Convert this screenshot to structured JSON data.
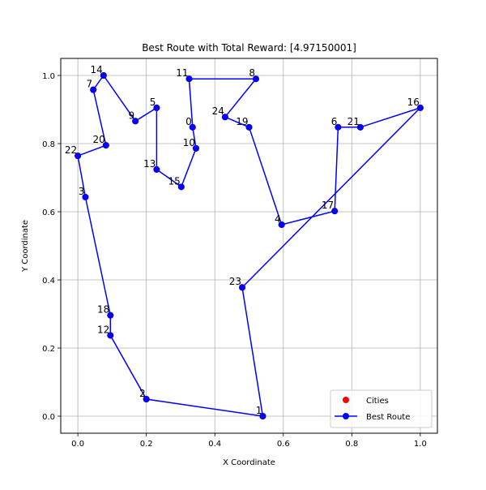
{
  "chart_data": {
    "type": "line",
    "title": "Best Route with Total Reward: [4.97150001]",
    "xlabel": "X Coordinate",
    "ylabel": "Y Coordinate",
    "xlim": [
      -0.05,
      1.05
    ],
    "ylim": [
      -0.05,
      1.05
    ],
    "grid": true,
    "x_ticks": [
      "0.0",
      "0.2",
      "0.4",
      "0.6",
      "0.8",
      "1.0"
    ],
    "y_ticks": [
      "0.0",
      "0.2",
      "0.4",
      "0.6",
      "0.8",
      "1.0"
    ],
    "x_tick_values": [
      0.0,
      0.2,
      0.4,
      0.6,
      0.8,
      1.0
    ],
    "y_tick_values": [
      0.0,
      0.2,
      0.4,
      0.6,
      0.8,
      1.0
    ],
    "legend": {
      "placement": "lower-right",
      "entries": [
        "Cities",
        "Best Route"
      ]
    },
    "colors": {
      "cities": "#ff0000",
      "route": "#0000ff"
    },
    "cities": [
      {
        "label": "0",
        "x": 0.335,
        "y": 0.848
      },
      {
        "label": "1",
        "x": 0.54,
        "y": 0.0
      },
      {
        "label": "2",
        "x": 0.2,
        "y": 0.05
      },
      {
        "label": "3",
        "x": 0.022,
        "y": 0.643
      },
      {
        "label": "4",
        "x": 0.595,
        "y": 0.562
      },
      {
        "label": "5",
        "x": 0.23,
        "y": 0.905
      },
      {
        "label": "6",
        "x": 0.76,
        "y": 0.848
      },
      {
        "label": "7",
        "x": 0.045,
        "y": 0.958
      },
      {
        "label": "8",
        "x": 0.52,
        "y": 0.99
      },
      {
        "label": "9",
        "x": 0.168,
        "y": 0.866
      },
      {
        "label": "10",
        "x": 0.345,
        "y": 0.786
      },
      {
        "label": "11",
        "x": 0.325,
        "y": 0.99
      },
      {
        "label": "12",
        "x": 0.095,
        "y": 0.237
      },
      {
        "label": "13",
        "x": 0.23,
        "y": 0.724
      },
      {
        "label": "14",
        "x": 0.075,
        "y": 1.0
      },
      {
        "label": "15",
        "x": 0.302,
        "y": 0.673
      },
      {
        "label": "16",
        "x": 1.0,
        "y": 0.905
      },
      {
        "label": "17",
        "x": 0.75,
        "y": 0.602
      },
      {
        "label": "18",
        "x": 0.095,
        "y": 0.296
      },
      {
        "label": "19",
        "x": 0.5,
        "y": 0.848
      },
      {
        "label": "20",
        "x": 0.082,
        "y": 0.795
      },
      {
        "label": "21",
        "x": 0.825,
        "y": 0.848
      },
      {
        "label": "22",
        "x": 0.0,
        "y": 0.764
      },
      {
        "label": "23",
        "x": 0.48,
        "y": 0.378
      },
      {
        "label": "24",
        "x": 0.43,
        "y": 0.878
      }
    ],
    "route_order": [
      "1",
      "2",
      "12",
      "18",
      "3",
      "22",
      "20",
      "7",
      "14",
      "9",
      "5",
      "13",
      "15",
      "10",
      "0",
      "11",
      "8",
      "24",
      "19",
      "4",
      "17",
      "6",
      "21",
      "16",
      "23",
      "1"
    ]
  }
}
